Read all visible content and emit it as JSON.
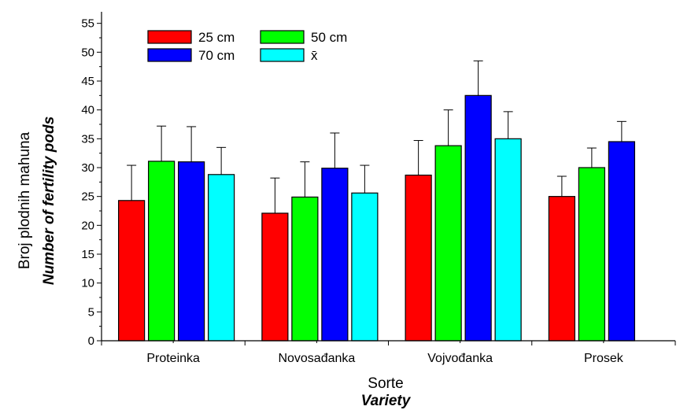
{
  "chart_data": {
    "type": "bar",
    "categories": [
      "Proteinka",
      "Novosađanka",
      "Vojvođanka",
      "Prosek"
    ],
    "series": [
      {
        "name": "25 cm",
        "color": "#ff0000",
        "values": [
          24.3,
          22.1,
          28.7,
          25.0
        ],
        "errors": [
          6.1,
          6.1,
          6.0,
          3.5
        ]
      },
      {
        "name": "50 cm",
        "color": "#00ff00",
        "values": [
          31.1,
          24.9,
          33.8,
          30.0
        ],
        "errors": [
          6.1,
          6.1,
          6.2,
          3.4
        ]
      },
      {
        "name": "70 cm",
        "color": "#0000ff",
        "values": [
          31.0,
          29.9,
          42.5,
          34.5
        ],
        "errors": [
          6.1,
          6.1,
          6.0,
          3.5
        ]
      },
      {
        "name": "x̄",
        "color": "#00ffff",
        "values": [
          28.8,
          25.6,
          35.0,
          null
        ],
        "errors": [
          4.7,
          4.8,
          4.7,
          null
        ]
      }
    ],
    "xlabel": "Sorte",
    "xlabel_en": "Variety",
    "ylabel": "Broj plodnih mahuna",
    "ylabel_en": "Number of fertility pods",
    "ylim": [
      0,
      57
    ],
    "yticks": [
      0,
      5,
      10,
      15,
      20,
      25,
      30,
      35,
      40,
      45,
      50,
      55
    ],
    "grid": false,
    "legend_position": "top-left"
  }
}
